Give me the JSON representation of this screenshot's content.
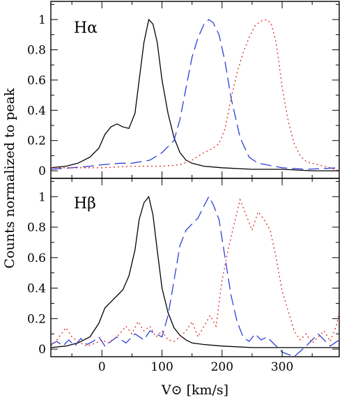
{
  "chart_data": [
    {
      "type": "line",
      "panel_label": "Hα",
      "xlabel": "V⊙ [km/s]",
      "ylabel": "Counts normalized to peak",
      "xlim": [
        -85,
        395
      ],
      "ylim": [
        -0.05,
        1.12
      ],
      "xticks": [
        0,
        100,
        200,
        300
      ],
      "xtick_labels": [
        "0",
        "100",
        "200",
        "300"
      ],
      "yticks": [
        0,
        0.2,
        0.4,
        0.6,
        0.8,
        1
      ],
      "ytick_labels": [
        "0",
        "0.2",
        "0.4",
        "0.6",
        "0.8",
        "1"
      ],
      "grid": false,
      "series": [
        {
          "style": "solid",
          "color": "#000000",
          "x": [
            -85,
            -60,
            -40,
            -20,
            -5,
            5,
            15,
            25,
            35,
            45,
            55,
            62,
            70,
            78,
            85,
            92,
            100,
            110,
            120,
            130,
            140,
            150,
            170,
            200,
            250,
            300,
            350,
            395
          ],
          "y": [
            0.02,
            0.03,
            0.05,
            0.09,
            0.15,
            0.24,
            0.29,
            0.31,
            0.29,
            0.28,
            0.38,
            0.6,
            0.85,
            1.0,
            0.97,
            0.85,
            0.6,
            0.38,
            0.22,
            0.12,
            0.07,
            0.05,
            0.03,
            0.02,
            0.01,
            0.01,
            0.0,
            0.0
          ]
        },
        {
          "style": "dashed",
          "color": "#2a3fd6",
          "x": [
            -85,
            -50,
            -20,
            0,
            30,
            50,
            80,
            100,
            120,
            130,
            140,
            150,
            160,
            170,
            178,
            185,
            195,
            205,
            215,
            230,
            245,
            260,
            300,
            340,
            395
          ],
          "y": [
            0.01,
            0.02,
            0.03,
            0.04,
            0.05,
            0.05,
            0.07,
            0.12,
            0.2,
            0.34,
            0.55,
            0.75,
            0.88,
            0.97,
            1.0,
            0.98,
            0.9,
            0.72,
            0.48,
            0.22,
            0.09,
            0.05,
            0.02,
            0.01,
            0.02
          ]
        },
        {
          "style": "dotted",
          "color": "#e0261f",
          "x": [
            -85,
            -40,
            0,
            50,
            100,
            130,
            150,
            170,
            185,
            195,
            205,
            215,
            225,
            235,
            245,
            255,
            265,
            275,
            282,
            290,
            300,
            310,
            320,
            330,
            340,
            360,
            380,
            395
          ],
          "y": [
            0.02,
            0.02,
            0.02,
            0.03,
            0.03,
            0.04,
            0.07,
            0.12,
            0.15,
            0.18,
            0.28,
            0.48,
            0.65,
            0.78,
            0.88,
            0.96,
            0.99,
            1.0,
            0.97,
            0.85,
            0.55,
            0.33,
            0.18,
            0.1,
            0.06,
            0.04,
            0.02,
            0.0
          ]
        }
      ]
    },
    {
      "type": "line",
      "panel_label": "Hβ",
      "xlabel": "V⊙ [km/s]",
      "ylabel": "Counts normalized to peak",
      "xlim": [
        -85,
        395
      ],
      "ylim": [
        -0.05,
        1.12
      ],
      "xticks": [
        0,
        100,
        200,
        300
      ],
      "xtick_labels": [
        "0",
        "100",
        "200",
        "300"
      ],
      "yticks": [
        0,
        0.2,
        0.4,
        0.6,
        0.8,
        1
      ],
      "ytick_labels": [
        "0",
        "0.2",
        "0.4",
        "0.6",
        "0.8",
        "1"
      ],
      "grid": false,
      "series": [
        {
          "style": "solid",
          "color": "#000000",
          "x": [
            -85,
            -60,
            -40,
            -20,
            -5,
            5,
            15,
            25,
            35,
            45,
            55,
            62,
            70,
            78,
            85,
            92,
            100,
            110,
            120,
            130,
            140,
            150,
            170,
            200,
            250,
            300,
            350,
            395
          ],
          "y": [
            0.01,
            0.02,
            0.04,
            0.08,
            0.17,
            0.27,
            0.31,
            0.35,
            0.39,
            0.48,
            0.65,
            0.85,
            0.96,
            1.0,
            0.88,
            0.65,
            0.4,
            0.24,
            0.14,
            0.09,
            0.06,
            0.04,
            0.03,
            0.02,
            0.01,
            0.01,
            0.01,
            0.01
          ]
        },
        {
          "style": "dashed",
          "color": "#2a3fd6",
          "x": [
            -85,
            -75,
            -65,
            -55,
            -45,
            -35,
            -25,
            -15,
            -5,
            5,
            15,
            25,
            40,
            55,
            70,
            80,
            90,
            100,
            110,
            120,
            130,
            140,
            150,
            160,
            170,
            178,
            185,
            195,
            205,
            215,
            225,
            235,
            245,
            255,
            265,
            275,
            285,
            300,
            320,
            340,
            360,
            380,
            395
          ],
          "y": [
            0.03,
            0.05,
            0.02,
            0.06,
            0.02,
            0.07,
            0.03,
            0.05,
            0.08,
            0.02,
            0.05,
            0.08,
            0.04,
            0.1,
            0.06,
            0.12,
            0.1,
            0.08,
            0.22,
            0.45,
            0.68,
            0.78,
            0.82,
            0.86,
            0.94,
            1.0,
            0.95,
            0.85,
            0.6,
            0.35,
            0.18,
            0.08,
            0.05,
            0.1,
            0.06,
            0.08,
            0.04,
            -0.02,
            -0.05,
            0.02,
            0.1,
            0.02,
            0.06
          ]
        },
        {
          "style": "dotted",
          "color": "#e0261f",
          "x": [
            -85,
            -75,
            -60,
            -50,
            -40,
            -25,
            -10,
            0,
            10,
            25,
            40,
            50,
            60,
            70,
            80,
            90,
            100,
            110,
            120,
            130,
            140,
            150,
            160,
            170,
            180,
            190,
            200,
            210,
            220,
            230,
            240,
            250,
            260,
            270,
            280,
            290,
            300,
            310,
            320,
            330,
            340,
            350,
            360,
            370,
            380,
            390,
            395
          ],
          "y": [
            0.02,
            0.06,
            0.14,
            0.08,
            0.05,
            0.02,
            0.04,
            0.06,
            0.04,
            0.08,
            0.15,
            0.1,
            0.18,
            0.12,
            0.15,
            0.08,
            0.12,
            0.06,
            0.05,
            0.08,
            0.12,
            0.18,
            0.08,
            0.15,
            0.22,
            0.15,
            0.45,
            0.65,
            0.82,
            0.98,
            0.88,
            0.78,
            0.9,
            0.85,
            0.78,
            0.6,
            0.38,
            0.25,
            0.12,
            0.06,
            0.1,
            0.04,
            0.08,
            0.12,
            0.05,
            0.15,
            0.24
          ]
        }
      ]
    }
  ]
}
